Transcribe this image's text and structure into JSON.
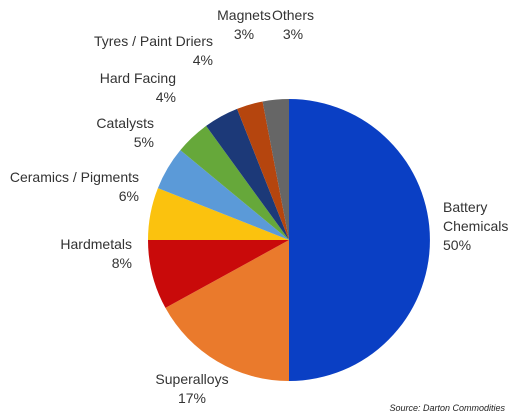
{
  "chart_data": {
    "type": "pie",
    "start_angle_deg": 0,
    "direction": "clockwise",
    "slices": [
      {
        "label": "Battery Chemicals",
        "value": 50,
        "value_label": "50%",
        "color": "#0a3fc4"
      },
      {
        "label": "Superalloys",
        "value": 17,
        "value_label": "17%",
        "color": "#ea7a2c"
      },
      {
        "label": "Hardmetals",
        "value": 8,
        "value_label": "8%",
        "color": "#c90a0a"
      },
      {
        "label": "Ceramics / Pigments",
        "value": 6,
        "value_label": "6%",
        "color": "#fbc20e"
      },
      {
        "label": "Catalysts",
        "value": 5,
        "value_label": "5%",
        "color": "#5b9ad8"
      },
      {
        "label": "Hard Facing",
        "value": 4,
        "value_label": "4%",
        "color": "#66a83a"
      },
      {
        "label": "Tyres / Paint Driers",
        "value": 4,
        "value_label": "4%",
        "color": "#1c3978"
      },
      {
        "label": "Magnets",
        "value": 3,
        "value_label": "3%",
        "color": "#b5450e"
      },
      {
        "label": "Others",
        "value": 3,
        "value_label": "3%",
        "color": "#666666"
      }
    ],
    "source_note": "Source: Darton Commodities"
  }
}
